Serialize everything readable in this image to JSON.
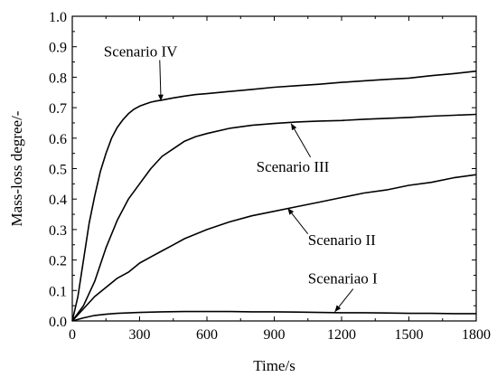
{
  "chart_data": {
    "type": "line",
    "title": "",
    "xlabel": "Time/s",
    "ylabel": "Mass-loss degree/-",
    "xlim": [
      0,
      1800
    ],
    "ylim": [
      0,
      1.0
    ],
    "xticks": [
      0,
      300,
      600,
      900,
      1200,
      1500,
      1800
    ],
    "yticks": [
      0.0,
      0.1,
      0.2,
      0.3,
      0.4,
      0.5,
      0.6,
      0.7,
      0.8,
      0.9,
      1.0
    ],
    "xtick_labels": [
      "0",
      "300",
      "600",
      "900",
      "1200",
      "1500",
      "1800"
    ],
    "ytick_labels": [
      "0.0",
      "0.1",
      "0.2",
      "0.3",
      "0.4",
      "0.5",
      "0.6",
      "0.7",
      "0.8",
      "0.9",
      "1.0"
    ],
    "grid": false,
    "series": [
      {
        "name": "Scenario IV",
        "color": "#000000",
        "x": [
          0,
          25,
          50,
          75,
          100,
          125,
          150,
          175,
          200,
          225,
          250,
          275,
          300,
          325,
          350,
          375,
          400,
          450,
          500,
          550,
          600,
          700,
          800,
          900,
          1000,
          1100,
          1200,
          1300,
          1400,
          1500,
          1600,
          1700,
          1800
        ],
        "y": [
          0.0,
          0.08,
          0.2,
          0.32,
          0.41,
          0.49,
          0.55,
          0.6,
          0.635,
          0.66,
          0.68,
          0.695,
          0.705,
          0.712,
          0.718,
          0.722,
          0.725,
          0.732,
          0.738,
          0.743,
          0.746,
          0.753,
          0.76,
          0.767,
          0.772,
          0.777,
          0.783,
          0.788,
          0.793,
          0.797,
          0.805,
          0.812,
          0.82
        ]
      },
      {
        "name": "Scenario III",
        "color": "#000000",
        "x": [
          0,
          50,
          100,
          150,
          200,
          250,
          300,
          350,
          400,
          450,
          500,
          550,
          600,
          700,
          800,
          900,
          1000,
          1100,
          1200,
          1300,
          1400,
          1500,
          1600,
          1700,
          1800
        ],
        "y": [
          0.0,
          0.05,
          0.13,
          0.24,
          0.33,
          0.4,
          0.45,
          0.5,
          0.54,
          0.565,
          0.59,
          0.605,
          0.615,
          0.632,
          0.642,
          0.648,
          0.653,
          0.656,
          0.658,
          0.662,
          0.665,
          0.668,
          0.672,
          0.675,
          0.678
        ]
      },
      {
        "name": "Scenario II",
        "color": "#000000",
        "x": [
          0,
          50,
          100,
          150,
          200,
          250,
          300,
          350,
          400,
          450,
          500,
          600,
          700,
          800,
          900,
          1000,
          1100,
          1200,
          1300,
          1400,
          1500,
          1600,
          1700,
          1800
        ],
        "y": [
          0.0,
          0.04,
          0.08,
          0.11,
          0.14,
          0.16,
          0.19,
          0.21,
          0.23,
          0.25,
          0.27,
          0.3,
          0.325,
          0.345,
          0.36,
          0.375,
          0.39,
          0.405,
          0.42,
          0.43,
          0.445,
          0.455,
          0.47,
          0.48
        ]
      },
      {
        "name": "Scenariao I",
        "color": "#000000",
        "x": [
          0,
          50,
          100,
          150,
          200,
          300,
          400,
          500,
          600,
          700,
          800,
          900,
          1000,
          1100,
          1200,
          1300,
          1400,
          1500,
          1600,
          1700,
          1800
        ],
        "y": [
          0.0,
          0.01,
          0.018,
          0.022,
          0.025,
          0.028,
          0.03,
          0.031,
          0.031,
          0.031,
          0.03,
          0.03,
          0.029,
          0.028,
          0.027,
          0.027,
          0.026,
          0.025,
          0.025,
          0.024,
          0.024
        ]
      }
    ],
    "annotations": [
      {
        "text": "Scenario IV",
        "label_x": 140,
        "label_y": 0.868,
        "arrow_to_x": 395,
        "arrow_to_y": 0.722
      },
      {
        "text": "Scenario III",
        "label_x": 820,
        "label_y": 0.49,
        "arrow_to_x": 975,
        "arrow_to_y": 0.648
      },
      {
        "text": "Scenario II",
        "label_x": 1050,
        "label_y": 0.25,
        "arrow_to_x": 960,
        "arrow_to_y": 0.37
      },
      {
        "text": "Scenariao I",
        "label_x": 1050,
        "label_y": 0.123,
        "arrow_to_x": 1170,
        "arrow_to_y": 0.03
      }
    ]
  }
}
